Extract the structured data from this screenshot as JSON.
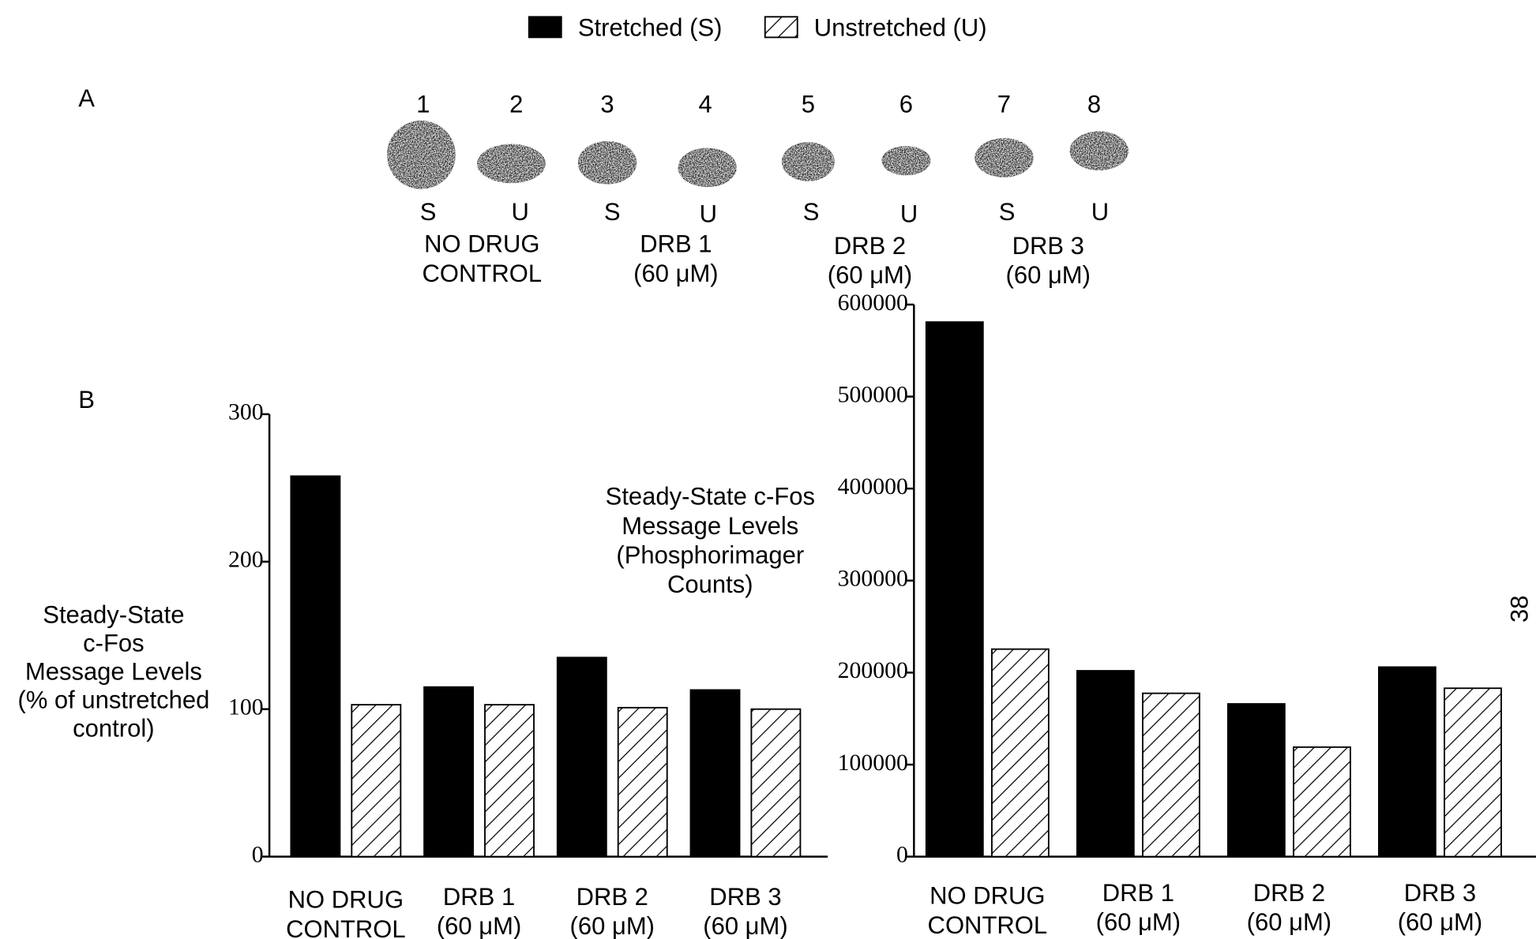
{
  "panel_labels": [
    "A",
    "B"
  ],
  "page_number": "38",
  "panel_a": {
    "lanes": [
      1,
      2,
      3,
      4,
      5,
      6,
      7,
      8
    ],
    "lane_types": [
      "S",
      "U",
      "S",
      "U",
      "S",
      "U",
      "S",
      "U"
    ],
    "groups": [
      "NO DRUG\nCONTROL",
      "DRB 1\n(60 μM)",
      "DRB 2\n(60 μM)",
      "DRB 3\n(60 μM)"
    ]
  },
  "chart_data": [
    {
      "type": "bar",
      "y_label": "Steady-State\nc-Fos\nMessage Levels\n(% of unstretched\ncontrol)",
      "categories": [
        "NO DRUG\nCONTROL",
        "DRB 1\n(60 μM)",
        "DRB 2\n(60 μM)",
        "DRB 3\n(60 μM)"
      ],
      "series": [
        {
          "name": "Stretched (S)",
          "color": "#000000",
          "hatch": false,
          "values": [
            258,
            115,
            135,
            113
          ]
        },
        {
          "name": "Unstretched (U)",
          "color": "#000000",
          "hatch": true,
          "values": [
            103,
            103,
            101,
            100
          ]
        }
      ],
      "ylim": [
        0,
        300
      ],
      "yticks": [
        0,
        100,
        200,
        300
      ]
    },
    {
      "type": "bar",
      "y_label": "Steady-State c-Fos\nMessage Levels\n(Phosphorimager\nCounts)",
      "categories": [
        "NO DRUG\nCONTROL",
        "DRB 1\n(60 μM)",
        "DRB 2\n(60 μM)",
        "DRB 3\n(60 μM)"
      ],
      "series": [
        {
          "color": "#000000",
          "hatch": false,
          "values": [
            581000,
            202000,
            166000,
            206000
          ]
        },
        {
          "color": "#000000",
          "hatch": true,
          "values": [
            225500,
            177500,
            119000,
            183000
          ]
        }
      ],
      "ylim": [
        0,
        600000
      ],
      "yticks": [
        0,
        100000,
        200000,
        300000,
        400000,
        500000,
        600000
      ]
    }
  ]
}
